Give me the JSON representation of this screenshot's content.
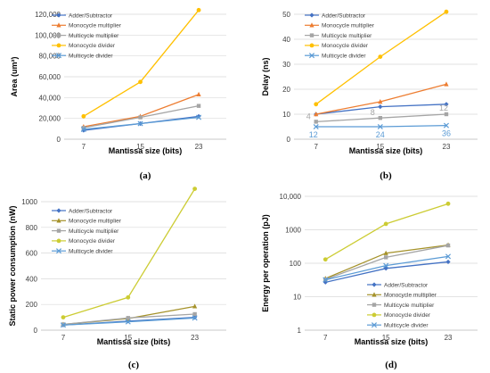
{
  "chart_data": [
    {
      "panel": "(a)",
      "type": "line",
      "xlabel": "Mantissa size (bits)",
      "ylabel": "Area (um²)",
      "categories": [
        "7",
        "15",
        "23"
      ],
      "ylim": [
        0,
        120000
      ],
      "yscale": "linear",
      "yticks": [
        0,
        20000,
        40000,
        60000,
        80000,
        100000,
        120000
      ],
      "ytick_labels": [
        "0",
        "20,000",
        "40,000",
        "60,000",
        "80,000",
        "100,000",
        "120,000"
      ],
      "legend_position": "top-left",
      "grid": true,
      "series": [
        {
          "name": "Adder/Subtractor",
          "values": [
            8500,
            15000,
            22000
          ],
          "color": "#4472c4",
          "marker": "diamond"
        },
        {
          "name": "Monocycle multiplier",
          "values": [
            12000,
            22000,
            43000
          ],
          "color": "#ed7d31",
          "marker": "triangle"
        },
        {
          "name": "Multicycle multiplier",
          "values": [
            11000,
            21000,
            32000
          ],
          "color": "#a5a5a5",
          "marker": "square"
        },
        {
          "name": "Monocycle divider",
          "values": [
            22000,
            55000,
            124000
          ],
          "color": "#ffc000",
          "marker": "circle"
        },
        {
          "name": "Multicycle divider",
          "values": [
            9500,
            15000,
            21000
          ],
          "color": "#5b9bd5",
          "marker": "x"
        }
      ]
    },
    {
      "panel": "(b)",
      "type": "line",
      "xlabel": "Mantissa size (bits)",
      "ylabel": "Delay (ns)",
      "categories": [
        "7",
        "15",
        "23"
      ],
      "ylim": [
        0,
        50
      ],
      "yscale": "linear",
      "yticks": [
        0,
        10,
        20,
        30,
        40,
        50
      ],
      "ytick_labels": [
        "0",
        "10",
        "20",
        "30",
        "40",
        "50"
      ],
      "legend_position": "top-left",
      "grid": true,
      "series": [
        {
          "name": "Adder/Subtractor",
          "values": [
            10,
            13,
            14
          ],
          "color": "#4472c4",
          "marker": "diamond"
        },
        {
          "name": "Monocycle multiplier",
          "values": [
            10,
            15,
            22
          ],
          "color": "#ed7d31",
          "marker": "triangle"
        },
        {
          "name": "Multicycle multiplier",
          "values": [
            7,
            8.5,
            10
          ],
          "color": "#a5a5a5",
          "marker": "square"
        },
        {
          "name": "Monocycle divider",
          "values": [
            14,
            33,
            51
          ],
          "color": "#ffc000",
          "marker": "circle"
        },
        {
          "name": "Multicycle divider",
          "values": [
            5,
            5,
            5.5
          ],
          "color": "#5b9bd5",
          "marker": "x"
        }
      ],
      "annotations": [
        {
          "series": "Multicycle multiplier",
          "labels": [
            "4",
            "8",
            "12"
          ],
          "color": "#a5a5a5",
          "placement": "above"
        },
        {
          "series": "Multicycle divider",
          "labels": [
            "12",
            "24",
            "36"
          ],
          "color": "#5b9bd5",
          "placement": "below"
        }
      ]
    },
    {
      "panel": "(c)",
      "type": "line",
      "xlabel": "Mantissa size (bits)",
      "ylabel": "Static power consumption (nW)",
      "categories": [
        "7",
        "15",
        "23"
      ],
      "ylim": [
        0,
        1000
      ],
      "yscale": "linear",
      "yticks": [
        0,
        200,
        400,
        600,
        800,
        1000
      ],
      "ytick_labels": [
        "0",
        "200",
        "400",
        "600",
        "800",
        "1000"
      ],
      "legend_position": "top-left",
      "grid": true,
      "series": [
        {
          "name": "Adder/Subtractor",
          "values": [
            40,
            70,
            100
          ],
          "color": "#4472c4",
          "marker": "diamond"
        },
        {
          "name": "Monocycle multiplier",
          "values": [
            45,
            90,
            185
          ],
          "color": "#a5922a",
          "marker": "triangle"
        },
        {
          "name": "Multicycle multiplier",
          "values": [
            45,
            95,
            125
          ],
          "color": "#a5a5a5",
          "marker": "square"
        },
        {
          "name": "Monocycle divider",
          "values": [
            100,
            255,
            1100
          ],
          "color": "#cccc33",
          "marker": "circle"
        },
        {
          "name": "Multicycle divider",
          "values": [
            40,
            65,
            95
          ],
          "color": "#5b9bd5",
          "marker": "x"
        }
      ]
    },
    {
      "panel": "(d)",
      "type": "line",
      "xlabel": "Mantissa size (bits)",
      "ylabel": "Energy per operation (pJ)",
      "categories": [
        "7",
        "15",
        "23"
      ],
      "ylim": [
        1,
        10000
      ],
      "yscale": "log",
      "yticks": [
        1,
        10,
        100,
        1000,
        10000
      ],
      "ytick_labels": [
        "1",
        "10",
        "100",
        "1000",
        "10,000"
      ],
      "legend_position": "bottom-right",
      "grid": true,
      "series": [
        {
          "name": "Adder/Subtractor",
          "values": [
            27,
            70,
            110
          ],
          "color": "#4472c4",
          "marker": "diamond"
        },
        {
          "name": "Monocycle multiplier",
          "values": [
            35,
            200,
            350
          ],
          "color": "#a5922a",
          "marker": "triangle"
        },
        {
          "name": "Multicycle multiplier",
          "values": [
            33,
            150,
            340
          ],
          "color": "#a5a5a5",
          "marker": "square"
        },
        {
          "name": "Monocycle divider",
          "values": [
            130,
            1500,
            6000
          ],
          "color": "#cccc33",
          "marker": "circle"
        },
        {
          "name": "Multicycle divider",
          "values": [
            32,
            85,
            160
          ],
          "color": "#5b9bd5",
          "marker": "x"
        }
      ]
    }
  ]
}
